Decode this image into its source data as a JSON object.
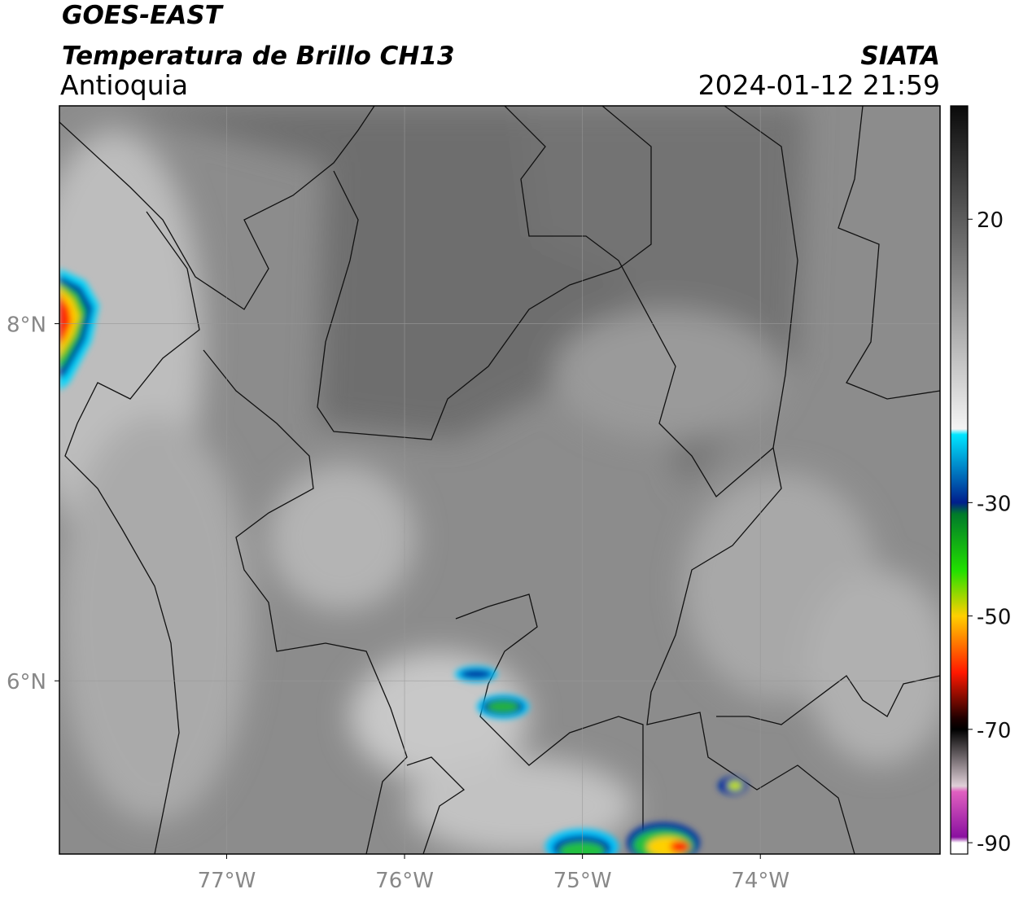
{
  "header": {
    "title": "GOES-EAST",
    "subtitle": "Temperatura de Brillo CH13",
    "region": "Antioquia",
    "source": "SIATA",
    "datetime": "2024-01-12 21:59"
  },
  "map": {
    "lon_range": [
      -77.94,
      -72.99
    ],
    "lat_range": [
      5.03,
      9.22
    ],
    "lon_ticks": [
      {
        "value": -77,
        "label": "77°W"
      },
      {
        "value": -76,
        "label": "76°W"
      },
      {
        "value": -75,
        "label": "75°W"
      },
      {
        "value": -74,
        "label": "74°W"
      }
    ],
    "lat_ticks": [
      {
        "value": 8,
        "label": "8°N"
      },
      {
        "value": 6,
        "label": "6°N"
      }
    ],
    "grid": true
  },
  "colorbar": {
    "clim": [
      -92,
      40
    ],
    "ticks": [
      20,
      -30,
      -50,
      -70,
      -90
    ],
    "stops": [
      [
        40,
        "#0a0a0a"
      ],
      [
        -17,
        "#f4f4f4"
      ],
      [
        -18,
        "#00e5ff"
      ],
      [
        -30,
        "#001e8c"
      ],
      [
        -32,
        "#007a2a"
      ],
      [
        -42,
        "#22e000"
      ],
      [
        -50,
        "#ffd000"
      ],
      [
        -60,
        "#ff1800"
      ],
      [
        -68,
        "#200000"
      ],
      [
        -70,
        "#000000"
      ],
      [
        -80,
        "#e0d0d8"
      ],
      [
        -81,
        "#e060c0"
      ],
      [
        -89,
        "#8a10a0"
      ],
      [
        -90,
        "#ffffff"
      ]
    ]
  }
}
